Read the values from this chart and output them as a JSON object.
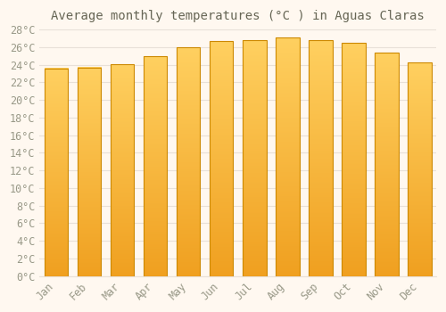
{
  "title": "Average monthly temperatures (°C ) in Aguas Claras",
  "months": [
    "Jan",
    "Feb",
    "Mar",
    "Apr",
    "May",
    "Jun",
    "Jul",
    "Aug",
    "Sep",
    "Oct",
    "Nov",
    "Dec"
  ],
  "values": [
    23.6,
    23.7,
    24.1,
    25.0,
    26.0,
    26.7,
    26.8,
    27.1,
    26.8,
    26.5,
    25.4,
    24.3
  ],
  "bar_color_light": "#FFD060",
  "bar_color_dark": "#F0A020",
  "bar_edge_color": "#CC8800",
  "ylim": [
    0,
    28
  ],
  "ytick_step": 2,
  "background_color": "#FFF8F0",
  "plot_bg_color": "#FFF8F0",
  "grid_color": "#E8E0D8",
  "title_fontsize": 10,
  "tick_fontsize": 8.5,
  "title_color": "#666655",
  "tick_color": "#999988"
}
